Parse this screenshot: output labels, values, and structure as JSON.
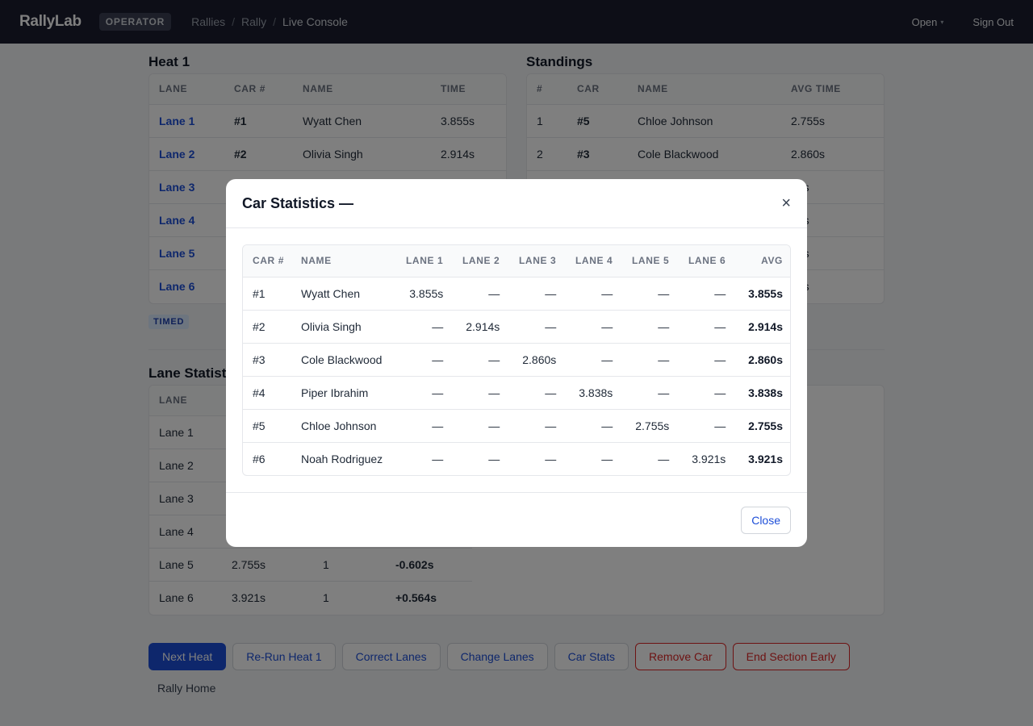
{
  "nav": {
    "brand": "RallyLab",
    "role": "OPERATOR",
    "breadcrumbs": [
      "Rallies",
      "Rally",
      "Live Console"
    ],
    "breadcrumb_sep": "/",
    "open_label": "Open",
    "caret": "▾",
    "sign_out": "Sign Out"
  },
  "heat": {
    "title": "Heat 1",
    "columns": [
      "LANE",
      "CAR #",
      "NAME",
      "TIME"
    ],
    "rows": [
      {
        "lane": "Lane 1",
        "car": "#1",
        "name": "Wyatt Chen",
        "time": "3.855s"
      },
      {
        "lane": "Lane 2",
        "car": "#2",
        "name": "Olivia Singh",
        "time": "2.914s"
      },
      {
        "lane": "Lane 3",
        "car": "",
        "name": "",
        "time": ""
      },
      {
        "lane": "Lane 4",
        "car": "",
        "name": "",
        "time": ""
      },
      {
        "lane": "Lane 5",
        "car": "",
        "name": "",
        "time": ""
      },
      {
        "lane": "Lane 6",
        "car": "",
        "name": "",
        "time": ""
      }
    ],
    "badge": "TIMED"
  },
  "standings": {
    "title": "Standings",
    "columns": [
      "#",
      "CAR",
      "NAME",
      "AVG TIME"
    ],
    "rows": [
      {
        "rank": "1",
        "car": "#5",
        "name": "Chloe Johnson",
        "avg": "2.755s"
      },
      {
        "rank": "2",
        "car": "#3",
        "name": "Cole Blackwood",
        "avg": "2.860s"
      },
      {
        "rank": "",
        "car": "",
        "name": "",
        "avg": "14s"
      },
      {
        "rank": "",
        "car": "",
        "name": "",
        "avg": "38s"
      },
      {
        "rank": "",
        "car": "",
        "name": "",
        "avg": "55s"
      },
      {
        "rank": "",
        "car": "",
        "name": "",
        "avg": "21s"
      }
    ]
  },
  "lane_stats": {
    "title": "Lane Statist",
    "columns": [
      "LANE",
      "",
      "",
      ""
    ],
    "rows": [
      {
        "lane": "Lane 1",
        "avg": "",
        "count": "",
        "delta": ""
      },
      {
        "lane": "Lane 2",
        "avg": "",
        "count": "",
        "delta": ""
      },
      {
        "lane": "Lane 3",
        "avg": "",
        "count": "",
        "delta": ""
      },
      {
        "lane": "Lane 4",
        "avg": "",
        "count": "",
        "delta": ""
      },
      {
        "lane": "Lane 5",
        "avg": "2.755s",
        "count": "1",
        "delta": "-0.602s"
      },
      {
        "lane": "Lane 6",
        "avg": "3.921s",
        "count": "1",
        "delta": "+0.564s"
      }
    ]
  },
  "actions": {
    "buttons": [
      {
        "label": "Next Heat",
        "kind": "primary",
        "name": "next-heat-button"
      },
      {
        "label": "Re-Run Heat 1",
        "kind": "default",
        "name": "rerun-heat-button"
      },
      {
        "label": "Correct Lanes",
        "kind": "default",
        "name": "correct-lanes-button"
      },
      {
        "label": "Change Lanes",
        "kind": "default",
        "name": "change-lanes-button"
      },
      {
        "label": "Car Stats",
        "kind": "default",
        "name": "car-stats-button"
      },
      {
        "label": "Remove Car",
        "kind": "danger",
        "name": "remove-car-button"
      },
      {
        "label": "End Section Early",
        "kind": "danger",
        "name": "end-section-early-button"
      }
    ],
    "rally_home": "Rally Home"
  },
  "modal": {
    "title": "Car Statistics —",
    "close_x": "×",
    "columns": [
      "CAR #",
      "NAME",
      "LANE 1",
      "LANE 2",
      "LANE 3",
      "LANE 4",
      "LANE 5",
      "LANE 6",
      "AVG"
    ],
    "rows": [
      {
        "car": "#1",
        "name": "Wyatt Chen",
        "lanes": [
          "3.855s",
          "—",
          "—",
          "—",
          "—",
          "—"
        ],
        "avg": "3.855s"
      },
      {
        "car": "#2",
        "name": "Olivia Singh",
        "lanes": [
          "—",
          "2.914s",
          "—",
          "—",
          "—",
          "—"
        ],
        "avg": "2.914s"
      },
      {
        "car": "#3",
        "name": "Cole Blackwood",
        "lanes": [
          "—",
          "—",
          "2.860s",
          "—",
          "—",
          "—"
        ],
        "avg": "2.860s"
      },
      {
        "car": "#4",
        "name": "Piper Ibrahim",
        "lanes": [
          "—",
          "—",
          "—",
          "3.838s",
          "—",
          "—"
        ],
        "avg": "3.838s"
      },
      {
        "car": "#5",
        "name": "Chloe Johnson",
        "lanes": [
          "—",
          "—",
          "—",
          "—",
          "2.755s",
          "—"
        ],
        "avg": "2.755s"
      },
      {
        "car": "#6",
        "name": "Noah Rodriguez",
        "lanes": [
          "—",
          "—",
          "—",
          "—",
          "—",
          "3.921s"
        ],
        "avg": "3.921s"
      }
    ],
    "close_label": "Close"
  }
}
